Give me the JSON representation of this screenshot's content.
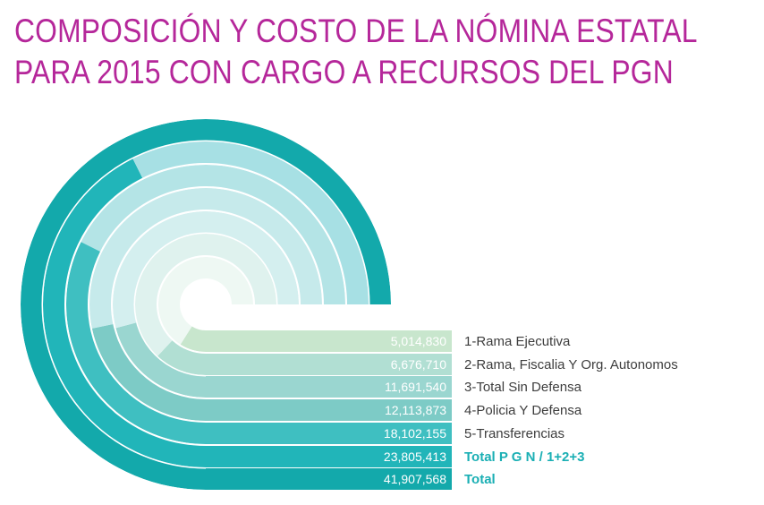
{
  "title_line1": "COMPOSICIÓN Y COSTO DE LA NÓMINA ESTATAL",
  "title_line2": "PARA 2015 CON CARGO A RECURSOS DEL PGN",
  "colors": {
    "title": "#b5279a",
    "label_text": "#3d3d3d",
    "accent_label": "#1aafb4",
    "series_colors": [
      "#c8e6cd",
      "#b1dfd3",
      "#9ad6d0",
      "#7dcbc6",
      "#3fbfc1",
      "#21b5b9",
      "#13a9ab"
    ],
    "remainder_colors": [
      "#eef8f3",
      "#dff2ee",
      "#d4efef",
      "#c6eaeb",
      "#b4e4e6",
      "#a7e0e4",
      "#0e9fa0"
    ]
  },
  "chart_data": {
    "type": "radial-bar",
    "title": "COMPOSICIÓN Y COSTO DE LA NÓMINA ESTATAL PARA 2015 CON CARGO A RECURSOS DEL PGN",
    "max": 41907568,
    "series": [
      {
        "name": "1-Rama Ejecutiva",
        "value": 5014830,
        "label": "5,014,830"
      },
      {
        "name": "2-Rama, Fiscalia Y Org. Autonomos",
        "value": 6676710,
        "label": "6,676,710"
      },
      {
        "name": "3-Total Sin Defensa",
        "value": 11691540,
        "label": "11,691,540"
      },
      {
        "name": "4-Policia Y Defensa",
        "value": 12113873,
        "label": "12,113,873"
      },
      {
        "name": "5-Transferencias",
        "value": 18102155,
        "label": "18,102,155"
      },
      {
        "name": "Total P G N / 1+2+3",
        "value": 23805413,
        "label": "23,805,413",
        "highlight": true
      },
      {
        "name": "Total",
        "value": 41907568,
        "label": "41,907,568",
        "highlight": true
      }
    ]
  }
}
